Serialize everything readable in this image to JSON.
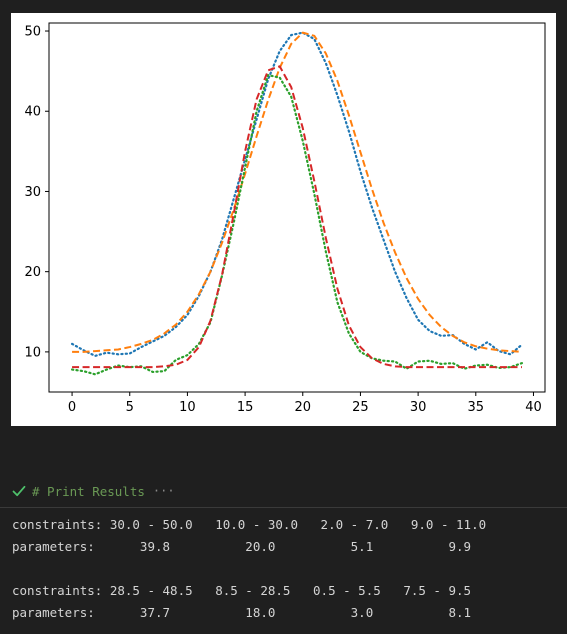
{
  "chart_data": {
    "type": "line",
    "xlim": [
      -2,
      41
    ],
    "ylim": [
      5,
      51
    ],
    "xticks": [
      "0",
      "5",
      "10",
      "15",
      "20",
      "25",
      "30",
      "35",
      "40"
    ],
    "yticks": [
      "10",
      "20",
      "30",
      "40",
      "50"
    ],
    "grid": false,
    "series": [
      {
        "style": "dotted",
        "color": "#1f77b4",
        "x": [
          0,
          1,
          2,
          3,
          4,
          5,
          6,
          7,
          8,
          9,
          10,
          11,
          12,
          13,
          14,
          15,
          16,
          17,
          18,
          19,
          20,
          21,
          22,
          23,
          24,
          25,
          26,
          27,
          28,
          29,
          30,
          31,
          32,
          33,
          34,
          35,
          36,
          37,
          38,
          39
        ],
        "y": [
          11.0,
          10.2,
          9.5,
          9.9,
          9.7,
          9.8,
          10.6,
          11.3,
          12.0,
          13.1,
          14.6,
          17.0,
          20.0,
          24.0,
          29.0,
          34.0,
          39.0,
          44.0,
          47.5,
          49.5,
          49.8,
          49.0,
          46.0,
          42.0,
          37.5,
          32.5,
          28.0,
          24.0,
          20.0,
          16.7,
          14.0,
          12.6,
          12.0,
          12.1,
          11.0,
          10.3,
          11.2,
          10.1,
          9.7,
          10.9
        ]
      },
      {
        "style": "dashed",
        "color": "#ff7f0e",
        "x": [
          0,
          1,
          2,
          3,
          4,
          5,
          6,
          7,
          8,
          9,
          10,
          11,
          12,
          13,
          14,
          15,
          16,
          17,
          18,
          19,
          20,
          21,
          22,
          23,
          24,
          25,
          26,
          27,
          28,
          29,
          30,
          31,
          32,
          33,
          34,
          35,
          36,
          37,
          38,
          39
        ],
        "y": [
          10.0,
          10.0,
          10.1,
          10.2,
          10.3,
          10.6,
          11.0,
          11.5,
          12.3,
          13.4,
          15.0,
          17.2,
          20.0,
          23.6,
          27.7,
          32.2,
          36.9,
          41.4,
          45.4,
          48.4,
          49.8,
          49.4,
          47.2,
          43.8,
          39.5,
          34.9,
          30.3,
          26.1,
          22.4,
          19.2,
          16.6,
          14.6,
          13.1,
          12.0,
          11.2,
          10.7,
          10.4,
          10.2,
          10.1,
          10.0
        ]
      },
      {
        "style": "dotted",
        "color": "#2ca02c",
        "x": [
          0,
          1,
          2,
          3,
          4,
          5,
          6,
          7,
          8,
          9,
          10,
          11,
          12,
          13,
          14,
          15,
          16,
          17,
          18,
          19,
          20,
          21,
          22,
          23,
          24,
          25,
          26,
          27,
          28,
          29,
          30,
          31,
          32,
          33,
          34,
          35,
          36,
          37,
          38,
          39
        ],
        "y": [
          7.8,
          7.6,
          7.2,
          7.8,
          8.3,
          8.1,
          8.2,
          7.5,
          7.6,
          9.0,
          9.6,
          11.0,
          13.7,
          19.5,
          26.0,
          33.0,
          40.0,
          44.5,
          44.2,
          41.8,
          36.3,
          29.7,
          22.5,
          16.2,
          12.3,
          10.0,
          9.2,
          8.9,
          8.8,
          7.9,
          8.8,
          8.9,
          8.5,
          8.6,
          7.9,
          8.3,
          8.4,
          8.0,
          8.1,
          8.6
        ]
      },
      {
        "style": "dashed",
        "color": "#d62728",
        "x": [
          0,
          1,
          2,
          3,
          4,
          5,
          6,
          7,
          8,
          9,
          10,
          11,
          12,
          13,
          14,
          15,
          16,
          17,
          18,
          19,
          20,
          21,
          22,
          23,
          24,
          25,
          26,
          27,
          28,
          29,
          30,
          31,
          32,
          33,
          34,
          35,
          36,
          37,
          38,
          39
        ],
        "y": [
          8.1,
          8.1,
          8.1,
          8.1,
          8.1,
          8.1,
          8.1,
          8.1,
          8.2,
          8.4,
          9.0,
          10.6,
          13.9,
          19.6,
          27.1,
          35.0,
          41.5,
          45.1,
          45.6,
          43.0,
          37.9,
          31.3,
          24.2,
          17.9,
          13.3,
          10.6,
          9.2,
          8.5,
          8.2,
          8.1,
          8.1,
          8.1,
          8.1,
          8.1,
          8.1,
          8.1,
          8.1,
          8.1,
          8.1,
          8.1
        ]
      }
    ]
  },
  "cell": {
    "comment": "# Print Results",
    "ellipsis": "···",
    "icon": "check-icon",
    "icon_color": "#4ec16b"
  },
  "output": {
    "block1": {
      "constraints": "constraints: 30.0 - 50.0   10.0 - 30.0   2.0 - 7.0   9.0 - 11.0",
      "parameters": "parameters:      39.8          20.0          5.1          9.9"
    },
    "block2": {
      "constraints": "constraints: 28.5 - 48.5   8.5 - 28.5   0.5 - 5.5   7.5 - 9.5",
      "parameters": "parameters:      37.7          18.0          3.0          8.1"
    }
  }
}
